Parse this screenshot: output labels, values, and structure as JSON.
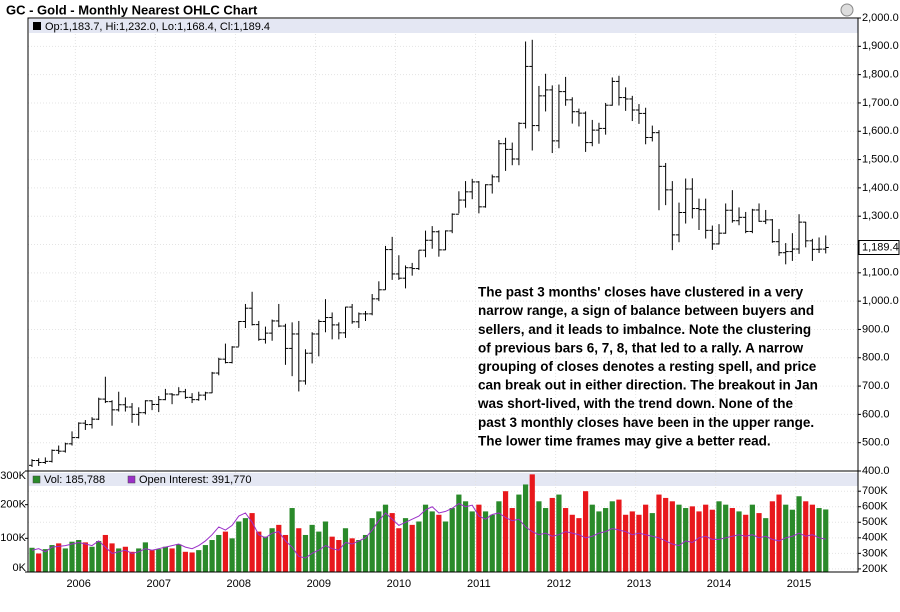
{
  "chart_data": [
    {
      "type": "ohlc",
      "title": "GC - Gold - Monthly Nearest OHLC Chart",
      "legend": "Op:1,183.7, Hi:1,232.0, Lo:1,168.4, Cl:1,189.4",
      "last_label": "1,189.4",
      "annotation": [
        "The past 3 months' closes have clustered in a very",
        "narrow range, a sign of balance between buyers and",
        "sellers, and it leads to imbalnce.  Note the clustering",
        "of previous bars 6, 7, 8, that led to a rally.  A narrow",
        "grouping of closes denotes a resting spell, and price",
        "can break out in either direction.  The breakout in Jan",
        "was short-lived, with the trend down.  None of the",
        "past 3 monthly closes have been in the upper range.",
        "The lower time frames may give a better read."
      ],
      "categories": [
        null,
        null,
        null,
        null,
        null,
        null,
        null,
        "2006",
        null,
        null,
        null,
        null,
        null,
        null,
        null,
        null,
        null,
        null,
        null,
        "2007",
        null,
        null,
        null,
        null,
        null,
        null,
        null,
        null,
        null,
        null,
        null,
        "2008",
        null,
        null,
        null,
        null,
        null,
        null,
        null,
        null,
        null,
        null,
        null,
        "2009",
        null,
        null,
        null,
        null,
        null,
        null,
        null,
        null,
        null,
        null,
        null,
        "2010",
        null,
        null,
        null,
        null,
        null,
        null,
        null,
        null,
        null,
        null,
        null,
        "2011",
        null,
        null,
        null,
        null,
        null,
        null,
        null,
        null,
        null,
        null,
        null,
        "2012",
        null,
        null,
        null,
        null,
        null,
        null,
        null,
        null,
        null,
        null,
        null,
        "2013",
        null,
        null,
        null,
        null,
        null,
        null,
        null,
        null,
        null,
        null,
        null,
        "2014",
        null,
        null,
        null,
        null,
        null,
        null,
        null,
        null,
        null,
        null,
        null,
        "2015",
        null,
        null,
        null,
        null
      ],
      "open": [
        420,
        437,
        430,
        434,
        473,
        470,
        496,
        518,
        569,
        564,
        583,
        654,
        645,
        616,
        634,
        626,
        600,
        606,
        648,
        635,
        652,
        672,
        669,
        680,
        660,
        652,
        668,
        676,
        746,
        795,
        783,
        838,
        928,
        975,
        917,
        865,
        887,
        930,
        912,
        833,
        884,
        718,
        816,
        884,
        928,
        942,
        916,
        888,
        979,
        927,
        955,
        955,
        1008,
        1040,
        1182,
        1096,
        1081,
        1118,
        1115,
        1180,
        1215,
        1245,
        1181,
        1248,
        1307,
        1357,
        1386,
        1421,
        1333,
        1411,
        1439,
        1556,
        1536,
        1502,
        1628,
        1829,
        1620,
        1725,
        1746,
        1566,
        1740,
        1711,
        1669,
        1664,
        1560,
        1604,
        1610,
        1692,
        1776,
        1719,
        1714,
        1675,
        1663,
        1578,
        1595,
        1476,
        1393,
        1234,
        1313,
        1396,
        1327,
        1323,
        1250,
        1202,
        1240,
        1321,
        1284,
        1296,
        1246,
        1322,
        1282,
        1287,
        1210,
        1171,
        1175,
        1184,
        1279,
        1213,
        1183,
        1183.7
      ],
      "high": [
        442,
        445,
        448,
        476,
        490,
        500,
        540,
        572,
        580,
        590,
        659,
        733,
        650,
        680,
        660,
        640,
        625,
        650,
        650,
        665,
        690,
        675,
        696,
        690,
        675,
        680,
        680,
        750,
        800,
        850,
        841,
        930,
        990,
        1033,
        930,
        910,
        935,
        990,
        920,
        925,
        930,
        830,
        890,
        935,
        1007,
        960,
        925,
        980,
        990,
        960,
        965,
        1025,
        1070,
        1195,
        1227,
        1162,
        1126,
        1135,
        1180,
        1249,
        1265,
        1250,
        1250,
        1310,
        1388,
        1424,
        1432,
        1424,
        1413,
        1447,
        1569,
        1577,
        1560,
        1632,
        1917,
        1923,
        1760,
        1803,
        1762,
        1765,
        1792,
        1720,
        1680,
        1670,
        1640,
        1630,
        1700,
        1790,
        1796,
        1755,
        1725,
        1696,
        1683,
        1620,
        1604,
        1488,
        1424,
        1348,
        1433,
        1434,
        1362,
        1362,
        1267,
        1272,
        1345,
        1392,
        1331,
        1315,
        1326,
        1345,
        1322,
        1290,
        1255,
        1205,
        1240,
        1307,
        1280,
        1220,
        1225,
        1232.0
      ],
      "low": [
        414,
        418,
        425,
        430,
        460,
        465,
        490,
        515,
        545,
        550,
        580,
        640,
        560,
        610,
        610,
        570,
        560,
        600,
        615,
        608,
        650,
        636,
        670,
        655,
        640,
        648,
        650,
        675,
        738,
        780,
        780,
        840,
        905,
        914,
        860,
        850,
        860,
        908,
        775,
        735,
        681,
        705,
        780,
        805,
        890,
        865,
        865,
        870,
        920,
        905,
        930,
        950,
        1000,
        1040,
        1075,
        1075,
        1045,
        1090,
        1110,
        1155,
        1185,
        1157,
        1180,
        1240,
        1310,
        1330,
        1360,
        1310,
        1330,
        1380,
        1420,
        1460,
        1480,
        1480,
        1610,
        1532,
        1600,
        1670,
        1523,
        1540,
        1690,
        1627,
        1617,
        1527,
        1547,
        1556,
        1588,
        1690,
        1691,
        1672,
        1636,
        1626,
        1554,
        1564,
        1321,
        1339,
        1180,
        1208,
        1274,
        1292,
        1251,
        1221,
        1181,
        1200,
        1238,
        1277,
        1268,
        1240,
        1240,
        1280,
        1272,
        1206,
        1160,
        1130,
        1142,
        1167,
        1190,
        1142,
        1170,
        1168.4
      ],
      "close": [
        437,
        430,
        434,
        473,
        470,
        496,
        518,
        569,
        564,
        583,
        654,
        645,
        616,
        634,
        626,
        600,
        606,
        648,
        635,
        652,
        672,
        669,
        680,
        660,
        652,
        668,
        676,
        746,
        795,
        783,
        838,
        928,
        975,
        917,
        865,
        887,
        930,
        912,
        833,
        884,
        718,
        816,
        884,
        928,
        942,
        916,
        888,
        979,
        927,
        955,
        955,
        1008,
        1040,
        1182,
        1096,
        1081,
        1118,
        1115,
        1180,
        1215,
        1245,
        1181,
        1248,
        1307,
        1357,
        1386,
        1421,
        1333,
        1411,
        1439,
        1556,
        1536,
        1502,
        1628,
        1829,
        1620,
        1725,
        1746,
        1566,
        1740,
        1711,
        1669,
        1664,
        1560,
        1604,
        1610,
        1692,
        1776,
        1719,
        1714,
        1675,
        1663,
        1578,
        1595,
        1476,
        1393,
        1234,
        1313,
        1396,
        1327,
        1323,
        1250,
        1202,
        1240,
        1321,
        1284,
        1296,
        1246,
        1322,
        1282,
        1287,
        1210,
        1171,
        1175,
        1184,
        1279,
        1213,
        1183,
        1183.7,
        1189.4
      ],
      "color": "#000000",
      "grid": true,
      "ylim": [
        400,
        2000
      ],
      "yticks": [
        {
          "value": 400,
          "label": "400.0"
        },
        {
          "value": 500,
          "label": "500.0"
        },
        {
          "value": 600,
          "label": "600.0"
        },
        {
          "value": 700,
          "label": "700.0"
        },
        {
          "value": 800,
          "label": "800.0"
        },
        {
          "value": 900,
          "label": "900.0"
        },
        {
          "value": 1000,
          "label": "1,000.0"
        },
        {
          "value": 1100,
          "label": "1,100.0"
        },
        {
          "value": 1200,
          "label": "1,200.0"
        },
        {
          "value": 1300,
          "label": "1,300.0"
        },
        {
          "value": 1400,
          "label": "1,400.0"
        },
        {
          "value": 1500,
          "label": "1,500.0"
        },
        {
          "value": 1600,
          "label": "1,600.0"
        },
        {
          "value": 1700,
          "label": "1,700.0"
        },
        {
          "value": 1800,
          "label": "1,800.0"
        },
        {
          "value": 1900,
          "label": "1,900.0"
        },
        {
          "value": 2000,
          "label": "2,000.0"
        }
      ]
    },
    {
      "type": "bar",
      "grid": true,
      "series": [
        {
          "name": "Vol: 185,788",
          "up_color": "#2a8a2a",
          "down_color": "#e8181c",
          "values": [
            72000,
            55000,
            68000,
            80000,
            85000,
            70000,
            90000,
            95000,
            88000,
            75000,
            92000,
            110000,
            85000,
            70000,
            75000,
            60000,
            70000,
            88000,
            65000,
            68000,
            75000,
            70000,
            82000,
            60000,
            58000,
            65000,
            80000,
            95000,
            110000,
            120000,
            100000,
            150000,
            160000,
            175000,
            120000,
            105000,
            130000,
            140000,
            110000,
            190000,
            130000,
            110000,
            140000,
            120000,
            150000,
            105000,
            95000,
            130000,
            100000,
            95000,
            110000,
            160000,
            180000,
            200000,
            175000,
            130000,
            160000,
            140000,
            150000,
            200000,
            180000,
            170000,
            150000,
            190000,
            230000,
            210000,
            180000,
            200000,
            180000,
            170000,
            210000,
            240000,
            190000,
            230000,
            260000,
            290000,
            210000,
            190000,
            220000,
            230000,
            190000,
            170000,
            160000,
            240000,
            200000,
            180000,
            190000,
            210000,
            215000,
            170000,
            180000,
            170000,
            200000,
            175000,
            230000,
            220000,
            210000,
            200000,
            190000,
            195000,
            180000,
            200000,
            185000,
            210000,
            200000,
            190000,
            180000,
            170000,
            200000,
            175000,
            160000,
            210000,
            230000,
            200000,
            185000,
            225000,
            210000,
            200000,
            190000,
            185788
          ]
        },
        {
          "name": "Open Interest: 391,770",
          "type": "line",
          "axis": "y2",
          "color": "#9b30c8",
          "values": [
            320000,
            330000,
            310000,
            340000,
            345000,
            350000,
            360000,
            370000,
            360000,
            350000,
            380000,
            340000,
            300000,
            310000,
            320000,
            300000,
            310000,
            330000,
            320000,
            330000,
            340000,
            350000,
            360000,
            340000,
            330000,
            350000,
            380000,
            420000,
            470000,
            450000,
            480000,
            540000,
            560000,
            500000,
            420000,
            400000,
            430000,
            440000,
            380000,
            340000,
            280000,
            270000,
            300000,
            320000,
            350000,
            330000,
            320000,
            370000,
            360000,
            380000,
            400000,
            450000,
            510000,
            560000,
            520000,
            480000,
            500000,
            520000,
            540000,
            580000,
            600000,
            560000,
            570000,
            590000,
            620000,
            600000,
            610000,
            540000,
            520000,
            550000,
            560000,
            530000,
            510000,
            520000,
            470000,
            440000,
            420000,
            430000,
            410000,
            420000,
            440000,
            430000,
            420000,
            400000,
            410000,
            430000,
            440000,
            460000,
            450000,
            440000,
            420000,
            430000,
            420000,
            410000,
            400000,
            380000,
            360000,
            350000,
            380000,
            370000,
            400000,
            410000,
            390000,
            390000,
            400000,
            410000,
            420000,
            410000,
            420000,
            400000,
            410000,
            390000,
            380000,
            400000,
            410000,
            430000,
            410000,
            420000,
            400000,
            391770
          ]
        }
      ],
      "ylim": [
        0,
        300000
      ],
      "yticks": [
        {
          "value": 0,
          "label": "0K"
        },
        {
          "value": 100000,
          "label": "100K"
        },
        {
          "value": 200000,
          "label": "200K"
        },
        {
          "value": 300000,
          "label": "300K"
        }
      ],
      "y2lim": [
        180000,
        830000
      ],
      "y2ticks": [
        {
          "value": 200000,
          "label": "200K"
        },
        {
          "value": 300000,
          "label": "300K"
        },
        {
          "value": 400000,
          "label": "400K"
        },
        {
          "value": 500000,
          "label": "500K"
        },
        {
          "value": 600000,
          "label": "600K"
        },
        {
          "value": 700000,
          "label": "700K"
        }
      ]
    }
  ]
}
